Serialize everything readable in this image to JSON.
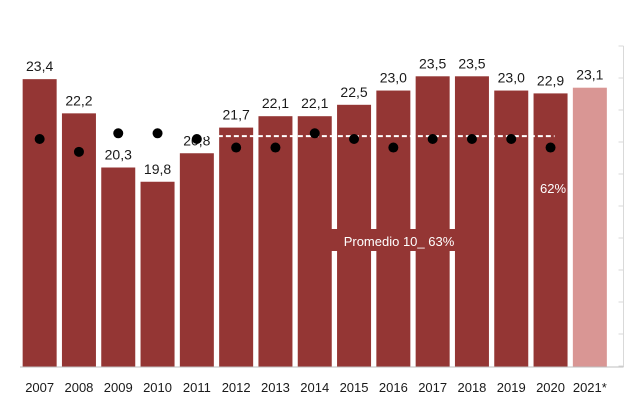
{
  "chart_data": {
    "type": "bar",
    "title": "",
    "xlabel": "",
    "ylabel": "",
    "ylim": [
      13.3,
      24.0
    ],
    "categories": [
      "2007",
      "2008",
      "2009",
      "2010",
      "2011",
      "2012",
      "2013",
      "2014",
      "2015",
      "2016",
      "2017",
      "2018",
      "2019",
      "2020",
      "2021*"
    ],
    "values": [
      23.4,
      22.2,
      20.3,
      19.8,
      20.8,
      21.7,
      22.1,
      22.1,
      22.5,
      23.0,
      23.5,
      23.5,
      23.0,
      22.9,
      23.1
    ],
    "value_labels": [
      "23,4",
      "22,2",
      "20,3",
      "19,8",
      "20,8",
      "21,7",
      "22,1",
      "22,1",
      "22,5",
      "23,0",
      "23,5",
      "23,5",
      "23,0",
      "22,9",
      "23,1"
    ],
    "bar_colors": [
      "#943634",
      "#943634",
      "#943634",
      "#943634",
      "#943634",
      "#943634",
      "#943634",
      "#943634",
      "#943634",
      "#943634",
      "#943634",
      "#943634",
      "#943634",
      "#943634",
      "#d99694"
    ],
    "dots": {
      "color": "#000000",
      "values": [
        21.3,
        20.85,
        21.5,
        21.5,
        21.3,
        21.0,
        21.0,
        21.5,
        21.3,
        21.0,
        21.3,
        21.3,
        21.3,
        21.0
      ]
    },
    "average_line": {
      "value": 21.4,
      "from_category": "2011",
      "to_category": "2020",
      "style": "dashed",
      "color": "#ffffff",
      "label": "Promedio 10_ 63%"
    },
    "annotation": {
      "text": "62%",
      "category": "2020"
    },
    "grid": false,
    "legend": "none"
  }
}
